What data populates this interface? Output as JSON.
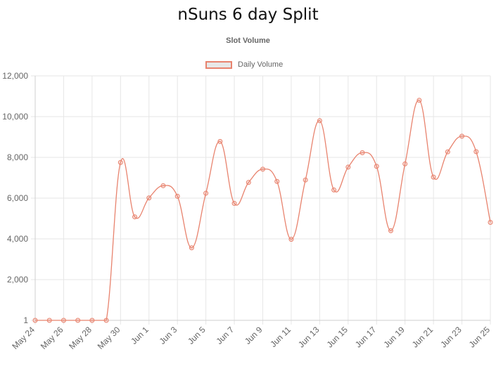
{
  "page": {
    "title": "nSuns 6 day Split"
  },
  "chart_data": {
    "type": "line",
    "title": "Slot Volume",
    "xlabel": "",
    "ylabel": "",
    "legend_position": "top",
    "grid": true,
    "y_scale": "log",
    "ylim": [
      1,
      12000
    ],
    "y_ticks": [
      1,
      2000,
      4000,
      6000,
      8000,
      10000,
      12000
    ],
    "y_tick_labels": [
      "1",
      "2,000",
      "4,000",
      "6,000",
      "8,000",
      "10,000",
      "12,000"
    ],
    "x_tick_labels": [
      "May 24",
      "May 26",
      "May 28",
      "May 30",
      "Jun 1",
      "Jun 3",
      "Jun 5",
      "Jun 7",
      "Jun 9",
      "Jun 11",
      "Jun 13",
      "Jun 15",
      "Jun 17",
      "Jun 19",
      "Jun 21",
      "Jun 23",
      "Jun 25"
    ],
    "colors": {
      "line": "#e8836e",
      "legend_fill": "#e8e8e8",
      "grid": "#e6e6e6",
      "axis_text": "#666666"
    },
    "series": [
      {
        "name": "Daily Volume",
        "points": [
          {
            "x": "May 24",
            "y": 1
          },
          {
            "x": "May 25",
            "y": 1
          },
          {
            "x": "May 26",
            "y": 1
          },
          {
            "x": "May 27",
            "y": 1
          },
          {
            "x": "May 28",
            "y": 1
          },
          {
            "x": "May 29",
            "y": 1
          },
          {
            "x": "May 30",
            "y": 7750
          },
          {
            "x": "May 31",
            "y": 5080
          },
          {
            "x": "Jun 1",
            "y": 6010
          },
          {
            "x": "Jun 2",
            "y": 6610
          },
          {
            "x": "Jun 3",
            "y": 6090
          },
          {
            "x": "Jun 4",
            "y": 3560
          },
          {
            "x": "Jun 5",
            "y": 6240
          },
          {
            "x": "Jun 6",
            "y": 8780
          },
          {
            "x": "Jun 7",
            "y": 5740
          },
          {
            "x": "Jun 8",
            "y": 6770
          },
          {
            "x": "Jun 9",
            "y": 7420
          },
          {
            "x": "Jun 10",
            "y": 6820
          },
          {
            "x": "Jun 11",
            "y": 3980
          },
          {
            "x": "Jun 12",
            "y": 6890
          },
          {
            "x": "Jun 13",
            "y": 9800
          },
          {
            "x": "Jun 14",
            "y": 6400
          },
          {
            "x": "Jun 15",
            "y": 7520
          },
          {
            "x": "Jun 16",
            "y": 8230
          },
          {
            "x": "Jun 17",
            "y": 7560
          },
          {
            "x": "Jun 18",
            "y": 4400
          },
          {
            "x": "Jun 19",
            "y": 7680
          },
          {
            "x": "Jun 20",
            "y": 10800
          },
          {
            "x": "Jun 21",
            "y": 7030
          },
          {
            "x": "Jun 22",
            "y": 8270
          },
          {
            "x": "Jun 23",
            "y": 9040
          },
          {
            "x": "Jun 24",
            "y": 8280
          },
          {
            "x": "Jun 25",
            "y": 4810
          }
        ]
      }
    ]
  }
}
